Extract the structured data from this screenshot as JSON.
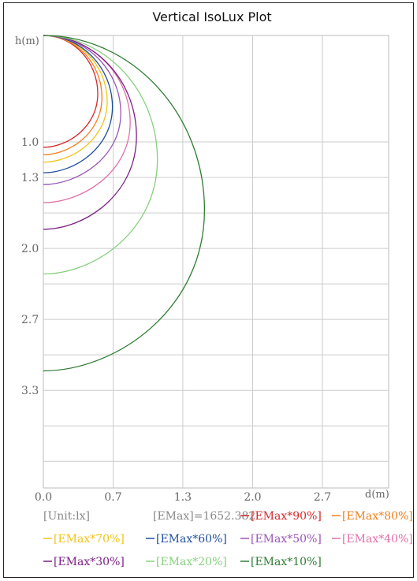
{
  "chart_data": {
    "type": "line",
    "title": "Vertical IsoLux Plot",
    "xlabel": "d(m)",
    "ylabel": "h(m)",
    "xlim": [
      0,
      3.3
    ],
    "ylim": [
      4.25,
      0
    ],
    "x_ticks": [
      "0.0",
      "0.7",
      "1.3",
      "2.0",
      "2.7"
    ],
    "x_tick_values": [
      0,
      0.667,
      1.333,
      2.0,
      2.667
    ],
    "y_ticks": [
      "1.0",
      "1.3",
      "2.0",
      "2.7",
      "3.3"
    ],
    "y_tick_values": [
      1.0,
      1.333,
      2.0,
      2.667,
      3.333
    ],
    "grid": true,
    "series": [
      {
        "name": "[EMax*90%]",
        "color": "#d62728",
        "max_d": 0.52,
        "max_h": 1.05
      },
      {
        "name": "[EMax*80%]",
        "color": "#f07f1c",
        "max_d": 0.56,
        "max_h": 1.12
      },
      {
        "name": "[EMax*70%]",
        "color": "#f0c419",
        "max_d": 0.61,
        "max_h": 1.19
      },
      {
        "name": "[EMax*60%]",
        "color": "#1f4e9c",
        "max_d": 0.66,
        "max_h": 1.29
      },
      {
        "name": "[EMax*50%]",
        "color": "#9a55b5",
        "max_d": 0.74,
        "max_h": 1.4
      },
      {
        "name": "[EMax*40%]",
        "color": "#e070a8",
        "max_d": 0.83,
        "max_h": 1.57
      },
      {
        "name": "[EMax*30%]",
        "color": "#7b1f86",
        "max_d": 0.89,
        "max_h": 1.82
      },
      {
        "name": "[EMax*20%]",
        "color": "#86d07e",
        "max_d": 1.09,
        "max_h": 2.24
      },
      {
        "name": "[EMax*10%]",
        "color": "#2e7d32",
        "max_d": 1.54,
        "max_h": 3.15
      }
    ]
  },
  "legend": {
    "unit": "[Unit:lx]",
    "emax": "[EMax]=1652.382"
  },
  "text_color": "#888888"
}
